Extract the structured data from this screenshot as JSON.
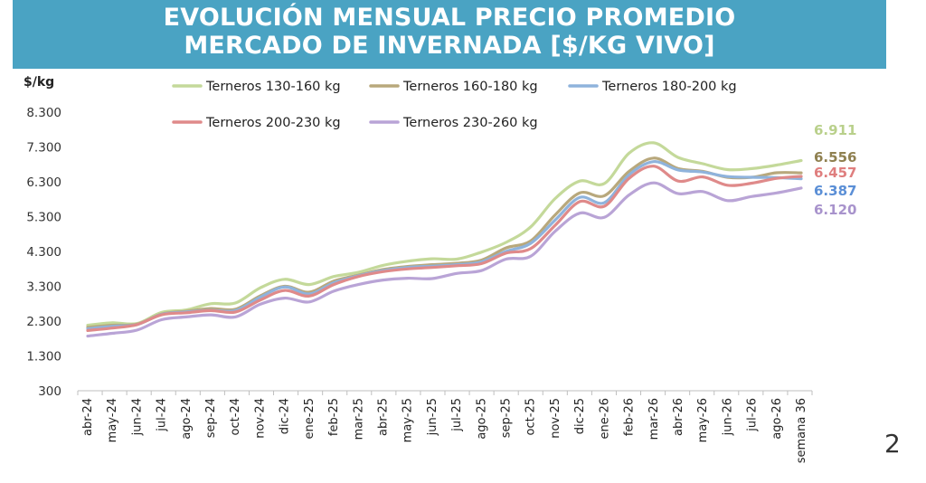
{
  "title": {
    "line1": "EVOLUCIÓN MENSUAL PRECIO PROMEDIO",
    "line2": "MERCADO DE INVERNADA [$/KG VIVO]"
  },
  "page_number": "2",
  "colors": {
    "banner": "#4aa3c3",
    "title_text": "#ffffff"
  },
  "chart_data": {
    "type": "line",
    "ylabel": "$/kg",
    "ylim": [
      300,
      8300
    ],
    "yticks": [
      300,
      1300,
      2300,
      3300,
      4300,
      5300,
      6300,
      7300,
      8300
    ],
    "ytick_labels": [
      "300",
      "1.300",
      "2.300",
      "3.300",
      "4.300",
      "5.300",
      "6.300",
      "7.300",
      "8.300"
    ],
    "grid": false,
    "legend_position": "top",
    "categories": [
      "abr-24",
      "may-24",
      "jun-24",
      "jul-24",
      "ago-24",
      "sep-24",
      "oct-24",
      "nov-24",
      "dic-24",
      "ene-25",
      "feb-25",
      "mar-25",
      "abr-25",
      "may-25",
      "jun-25",
      "jul-25",
      "ago-25",
      "sep-25",
      "oct-25",
      "nov-25",
      "dic-25",
      "ene-26",
      "feb-26",
      "mar-26",
      "abr-26",
      "may-26",
      "jun-26",
      "jul-26",
      "ago-26",
      "semana 36"
    ],
    "series": [
      {
        "name": "Terneros 130-160 kg",
        "color": "#c4d99a",
        "end_label": "6.911",
        "values": [
          2180,
          2250,
          2230,
          2550,
          2620,
          2800,
          2820,
          3250,
          3500,
          3350,
          3580,
          3700,
          3900,
          4020,
          4090,
          4080,
          4280,
          4560,
          5000,
          5820,
          6320,
          6250,
          7120,
          7420,
          7000,
          6820,
          6650,
          6680,
          6780,
          6911
        ]
      },
      {
        "name": "Terneros 160-180 kg",
        "color": "#b8a87c",
        "end_label": "6.556",
        "values": [
          2120,
          2180,
          2210,
          2500,
          2580,
          2660,
          2640,
          3020,
          3300,
          3130,
          3450,
          3620,
          3780,
          3870,
          3920,
          3960,
          4050,
          4400,
          4600,
          5350,
          5980,
          5900,
          6600,
          6980,
          6680,
          6600,
          6430,
          6430,
          6560,
          6556
        ]
      },
      {
        "name": "Terneros 180-200 kg",
        "color": "#8fb3dc",
        "end_label": "6.387",
        "values": [
          2080,
          2150,
          2200,
          2490,
          2560,
          2610,
          2600,
          2980,
          3280,
          3080,
          3400,
          3600,
          3750,
          3840,
          3880,
          3920,
          4000,
          4300,
          4530,
          5200,
          5850,
          5700,
          6500,
          6880,
          6640,
          6580,
          6450,
          6430,
          6420,
          6387
        ]
      },
      {
        "name": "Terneros 200-230 kg",
        "color": "#df8a8a",
        "end_label": "6.457",
        "values": [
          2030,
          2100,
          2200,
          2480,
          2540,
          2600,
          2560,
          2900,
          3180,
          3020,
          3350,
          3580,
          3720,
          3800,
          3840,
          3890,
          3950,
          4250,
          4380,
          5050,
          5730,
          5600,
          6400,
          6750,
          6320,
          6440,
          6200,
          6260,
          6400,
          6457
        ]
      },
      {
        "name": "Terneros 230-260 kg",
        "color": "#b9a4d6",
        "end_label": "6.120",
        "values": [
          1870,
          1950,
          2040,
          2340,
          2420,
          2480,
          2420,
          2780,
          2960,
          2850,
          3160,
          3350,
          3480,
          3530,
          3520,
          3670,
          3750,
          4080,
          4160,
          4880,
          5400,
          5280,
          5920,
          6270,
          5960,
          6020,
          5760,
          5880,
          5980,
          6120
        ]
      }
    ]
  }
}
